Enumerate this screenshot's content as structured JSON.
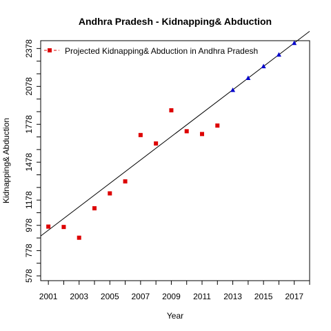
{
  "chart_data": {
    "type": "scatter",
    "title": "Andhra Pradesh  -  Kidnapping& Abduction",
    "xlabel": "Year",
    "ylabel": "Kidnapping& Abduction",
    "xlim": [
      2000.5,
      2018
    ],
    "ylim": [
      540,
      2440
    ],
    "x_ticks": [
      2001,
      2003,
      2005,
      2007,
      2009,
      2011,
      2013,
      2015,
      2017
    ],
    "x_minor_ticks": [
      2002,
      2004,
      2006,
      2008,
      2010,
      2012,
      2014,
      2016,
      2018
    ],
    "y_ticks": [
      578,
      778,
      978,
      1178,
      1478,
      1778,
      2078,
      2378
    ],
    "y_minor_ticks": [
      678,
      878,
      1078,
      1278,
      1378,
      1578,
      1678,
      1878,
      1978,
      2178,
      2278
    ],
    "grid": false,
    "legend": {
      "position": "top-left",
      "entries": [
        "Projected  Kidnapping& Abduction  in  Andhra Pradesh"
      ]
    },
    "series": [
      {
        "kind": "observed",
        "marker": "square",
        "color": "#dd0000",
        "x": [
          2001,
          2002,
          2003,
          2004,
          2005,
          2006,
          2007,
          2008,
          2009,
          2010,
          2011,
          2012
        ],
        "y": [
          968,
          965,
          880,
          1113,
          1231,
          1326,
          1693,
          1626,
          1889,
          1723,
          1701,
          1768
        ]
      },
      {
        "kind": "projected",
        "marker": "triangle",
        "color": "#0000cc",
        "x": [
          2013,
          2014,
          2015,
          2016,
          2017
        ],
        "y": [
          2050,
          2145,
          2238,
          2330,
          2422
        ]
      }
    ],
    "trend_line": {
      "color": "#000000",
      "intercept_at_2001": 940,
      "slope_per_year": 92.6
    }
  }
}
